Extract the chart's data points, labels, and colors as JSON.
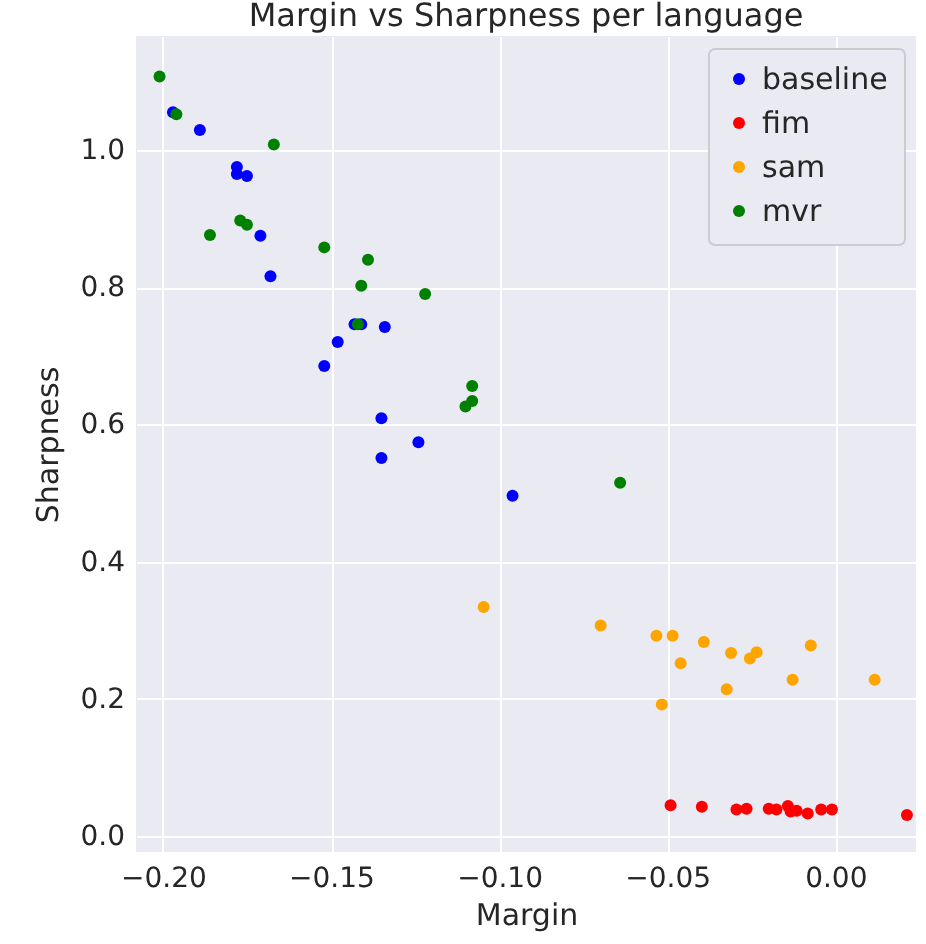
{
  "chart_data": {
    "type": "scatter",
    "title": "Margin vs Sharpness per language",
    "xlabel": "Margin",
    "ylabel": "Sharpness",
    "xlim": [
      -0.208,
      0.024
    ],
    "ylim": [
      -0.023,
      1.166
    ],
    "xticks": [
      {
        "value": -0.2,
        "label": "−0.20"
      },
      {
        "value": -0.15,
        "label": "−0.15"
      },
      {
        "value": -0.1,
        "label": "−0.10"
      },
      {
        "value": -0.05,
        "label": "−0.05"
      },
      {
        "value": 0,
        "label": "0.00"
      }
    ],
    "yticks": [
      {
        "value": 0,
        "label": "0.0"
      },
      {
        "value": 0.2,
        "label": "0.2"
      },
      {
        "value": 0.4,
        "label": "0.4"
      },
      {
        "value": 0.6,
        "label": "0.6"
      },
      {
        "value": 0.8,
        "label": "0.8"
      },
      {
        "value": 1.0,
        "label": "1.0"
      }
    ],
    "grid": true,
    "legend": "top right",
    "marker": "circle",
    "series": [
      {
        "name": "baseline",
        "color": "#0000ff",
        "x": [
          -0.197,
          -0.189,
          -0.178,
          -0.178,
          -0.175,
          -0.171,
          -0.168,
          -0.152,
          -0.148,
          -0.143,
          -0.141,
          -0.134,
          -0.135,
          -0.135,
          -0.124,
          -0.096
        ],
        "values": [
          1.055,
          1.029,
          0.975,
          0.965,
          0.962,
          0.875,
          0.816,
          0.685,
          0.72,
          0.746,
          0.746,
          0.742,
          0.609,
          0.551,
          0.574,
          0.496
        ]
      },
      {
        "name": "fim",
        "color": "#ff0000",
        "x": [
          -0.049,
          -0.0397,
          -0.0294,
          -0.0264,
          -0.0198,
          -0.0175,
          -0.0141,
          -0.0133,
          -0.0115,
          -0.0082,
          -0.0042,
          -0.001,
          0.0213
        ],
        "values": [
          0.045,
          0.043,
          0.039,
          0.04,
          0.04,
          0.039,
          0.044,
          0.036,
          0.037,
          0.033,
          0.039,
          0.039,
          0.031
        ]
      },
      {
        "name": "sam",
        "color": "#ffa500",
        "x": [
          -0.1046,
          -0.0698,
          -0.0532,
          -0.0484,
          -0.0391,
          -0.046,
          -0.031,
          -0.0254,
          -0.0234,
          -0.0073,
          -0.0127,
          -0.0323,
          -0.0516,
          0.0117
        ],
        "values": [
          0.334,
          0.307,
          0.292,
          0.292,
          0.283,
          0.252,
          0.267,
          0.259,
          0.268,
          0.278,
          0.228,
          0.214,
          0.192,
          0.228
        ]
      },
      {
        "name": "mvr",
        "color": "#008000",
        "x": [
          -0.201,
          -0.196,
          -0.167,
          -0.186,
          -0.177,
          -0.175,
          -0.152,
          -0.139,
          -0.141,
          -0.142,
          -0.122,
          -0.108,
          -0.108,
          -0.11,
          -0.064
        ],
        "values": [
          1.107,
          1.052,
          1.008,
          0.876,
          0.897,
          0.891,
          0.858,
          0.84,
          0.802,
          0.746,
          0.79,
          0.656,
          0.634,
          0.626,
          0.515
        ]
      }
    ]
  }
}
